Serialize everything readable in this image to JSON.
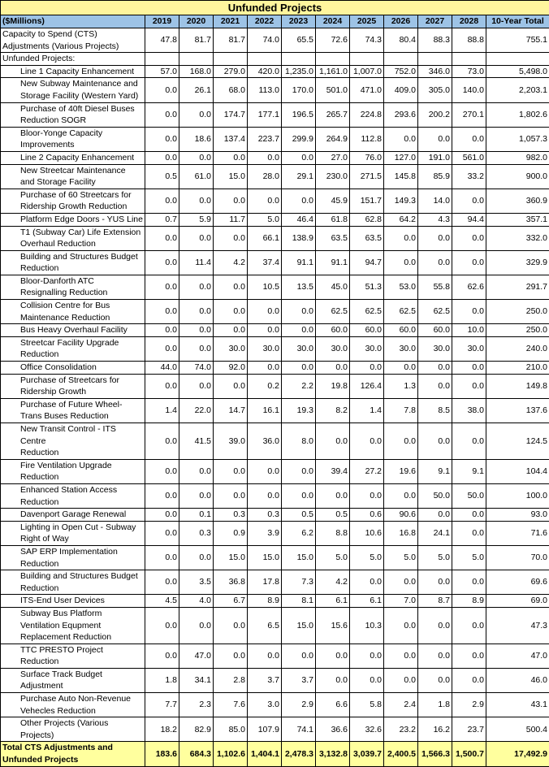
{
  "title": "Unfunded Projects",
  "header": {
    "unit_label": "($Millions)",
    "years": [
      "2019",
      "2020",
      "2021",
      "2022",
      "2023",
      "2024",
      "2025",
      "2026",
      "2027",
      "2028"
    ],
    "total_label": "10-Year Total"
  },
  "colors": {
    "title_bg": "#fff59d",
    "header_bg": "#9dc3e6",
    "total_bg": "#ffff9e"
  },
  "rows": [
    {
      "label": "Capacity to Spend (CTS)\nAdjustments (Various Projects)",
      "indent": false,
      "values": [
        "47.8",
        "81.7",
        "81.7",
        "74.0",
        "65.5",
        "72.6",
        "74.3",
        "80.4",
        "88.3",
        "88.8"
      ],
      "total": "755.1"
    },
    {
      "label": "Unfunded Projects:",
      "indent": false,
      "values": [
        "",
        "",
        "",
        "",
        "",
        "",
        "",
        "",
        "",
        ""
      ],
      "total": ""
    },
    {
      "label": "Line 1 Capacity Enhancement",
      "indent": true,
      "values": [
        "57.0",
        "168.0",
        "279.0",
        "420.0",
        "1,235.0",
        "1,161.0",
        "1,007.0",
        "752.0",
        "346.0",
        "73.0"
      ],
      "total": "5,498.0"
    },
    {
      "label": "New Subway Maintenance and\nStorage Facility (Western Yard)",
      "indent": true,
      "values": [
        "0.0",
        "26.1",
        "68.0",
        "113.0",
        "170.0",
        "501.0",
        "471.0",
        "409.0",
        "305.0",
        "140.0"
      ],
      "total": "2,203.1"
    },
    {
      "label": "Purchase of 40ft Diesel Buses\nReduction SOGR",
      "indent": true,
      "values": [
        "0.0",
        "0.0",
        "174.7",
        "177.1",
        "196.5",
        "265.7",
        "224.8",
        "293.6",
        "200.2",
        "270.1"
      ],
      "total": "1,802.6"
    },
    {
      "label": "Bloor-Yonge Capacity\nImprovements",
      "indent": true,
      "values": [
        "0.0",
        "18.6",
        "137.4",
        "223.7",
        "299.9",
        "264.9",
        "112.8",
        "0.0",
        "0.0",
        "0.0"
      ],
      "total": "1,057.3"
    },
    {
      "label": "Line 2 Capacity Enhancement",
      "indent": true,
      "values": [
        "0.0",
        "0.0",
        "0.0",
        "0.0",
        "0.0",
        "27.0",
        "76.0",
        "127.0",
        "191.0",
        "561.0"
      ],
      "total": "982.0"
    },
    {
      "label": "New Streetcar Maintenance\nand Storage Facility",
      "indent": true,
      "values": [
        "0.5",
        "61.0",
        "15.0",
        "28.0",
        "29.1",
        "230.0",
        "271.5",
        "145.8",
        "85.9",
        "33.2"
      ],
      "total": "900.0"
    },
    {
      "label": "Purchase of 60 Streetcars for\nRidership Growth Reduction",
      "indent": true,
      "values": [
        "0.0",
        "0.0",
        "0.0",
        "0.0",
        "0.0",
        "45.9",
        "151.7",
        "149.3",
        "14.0",
        "0.0"
      ],
      "total": "360.9"
    },
    {
      "label": "Platform Edge Doors - YUS Line",
      "indent": true,
      "values": [
        "0.7",
        "5.9",
        "11.7",
        "5.0",
        "46.4",
        "61.8",
        "62.8",
        "64.2",
        "4.3",
        "94.4"
      ],
      "total": "357.1"
    },
    {
      "label": "T1 (Subway Car) Life Extension\nOverhaul Reduction",
      "indent": true,
      "values": [
        "0.0",
        "0.0",
        "0.0",
        "66.1",
        "138.9",
        "63.5",
        "63.5",
        "0.0",
        "0.0",
        "0.0"
      ],
      "total": "332.0"
    },
    {
      "label": "Building and Structures Budget\nReduction",
      "indent": true,
      "values": [
        "0.0",
        "11.4",
        "4.2",
        "37.4",
        "91.1",
        "91.1",
        "94.7",
        "0.0",
        "0.0",
        "0.0"
      ],
      "total": "329.9"
    },
    {
      "label": "Bloor-Danforth ATC\nResignalling Reduction",
      "indent": true,
      "values": [
        "0.0",
        "0.0",
        "0.0",
        "10.5",
        "13.5",
        "45.0",
        "51.3",
        "53.0",
        "55.8",
        "62.6"
      ],
      "total": "291.7"
    },
    {
      "label": "Collision Centre for Bus\nMaintenance Reduction",
      "indent": true,
      "values": [
        "0.0",
        "0.0",
        "0.0",
        "0.0",
        "0.0",
        "62.5",
        "62.5",
        "62.5",
        "62.5",
        "0.0"
      ],
      "total": "250.0"
    },
    {
      "label": "Bus Heavy Overhaul Facility",
      "indent": true,
      "values": [
        "0.0",
        "0.0",
        "0.0",
        "0.0",
        "0.0",
        "60.0",
        "60.0",
        "60.0",
        "60.0",
        "10.0"
      ],
      "total": "250.0"
    },
    {
      "label": "Streetcar Facility Upgrade\nReduction",
      "indent": true,
      "values": [
        "0.0",
        "0.0",
        "30.0",
        "30.0",
        "30.0",
        "30.0",
        "30.0",
        "30.0",
        "30.0",
        "30.0"
      ],
      "total": "240.0"
    },
    {
      "label": "Office Consolidation",
      "indent": true,
      "values": [
        "44.0",
        "74.0",
        "92.0",
        "0.0",
        "0.0",
        "0.0",
        "0.0",
        "0.0",
        "0.0",
        "0.0"
      ],
      "total": "210.0"
    },
    {
      "label": "Purchase of Streetcars for\nRidership Growth",
      "indent": true,
      "values": [
        "0.0",
        "0.0",
        "0.0",
        "0.2",
        "2.2",
        "19.8",
        "126.4",
        "1.3",
        "0.0",
        "0.0"
      ],
      "total": "149.8"
    },
    {
      "label": "Purchase of Future Wheel-\nTrans Buses Reduction",
      "indent": true,
      "values": [
        "1.4",
        "22.0",
        "14.7",
        "16.1",
        "19.3",
        "8.2",
        "1.4",
        "7.8",
        "8.5",
        "38.0"
      ],
      "total": "137.6"
    },
    {
      "label": "New Transit Control - ITS Centre\nReduction",
      "indent": true,
      "values": [
        "0.0",
        "41.5",
        "39.0",
        "36.0",
        "8.0",
        "0.0",
        "0.0",
        "0.0",
        "0.0",
        "0.0"
      ],
      "total": "124.5"
    },
    {
      "label": "Fire Ventilation Upgrade\nReduction",
      "indent": true,
      "values": [
        "0.0",
        "0.0",
        "0.0",
        "0.0",
        "0.0",
        "39.4",
        "27.2",
        "19.6",
        "9.1",
        "9.1"
      ],
      "total": "104.4"
    },
    {
      "label": "Enhanced Station Access\nReduction",
      "indent": true,
      "values": [
        "0.0",
        "0.0",
        "0.0",
        "0.0",
        "0.0",
        "0.0",
        "0.0",
        "0.0",
        "50.0",
        "50.0"
      ],
      "total": "100.0"
    },
    {
      "label": "Davenport Garage Renewal",
      "indent": true,
      "values": [
        "0.0",
        "0.1",
        "0.3",
        "0.3",
        "0.5",
        "0.5",
        "0.6",
        "90.6",
        "0.0",
        "0.0"
      ],
      "total": "93.0"
    },
    {
      "label": "Lighting in Open Cut - Subway\nRight of Way",
      "indent": true,
      "values": [
        "0.0",
        "0.3",
        "0.9",
        "3.9",
        "6.2",
        "8.8",
        "10.6",
        "16.8",
        "24.1",
        "0.0"
      ],
      "total": "71.6"
    },
    {
      "label": "SAP ERP Implementation\nReduction",
      "indent": true,
      "values": [
        "0.0",
        "0.0",
        "15.0",
        "15.0",
        "15.0",
        "5.0",
        "5.0",
        "5.0",
        "5.0",
        "5.0"
      ],
      "total": "70.0"
    },
    {
      "label": "Building and Structures Budget\nReduction",
      "indent": true,
      "values": [
        "0.0",
        "3.5",
        "36.8",
        "17.8",
        "7.3",
        "4.2",
        "0.0",
        "0.0",
        "0.0",
        "0.0"
      ],
      "total": "69.6"
    },
    {
      "label": "ITS-End User Devices",
      "indent": true,
      "values": [
        "4.5",
        "4.0",
        "6.7",
        "8.9",
        "8.1",
        "6.1",
        "6.1",
        "7.0",
        "8.7",
        "8.9"
      ],
      "total": "69.0"
    },
    {
      "label": "Subway Bus Platform\nVentilation Equpment\nReplacement Reduction",
      "indent": true,
      "values": [
        "0.0",
        "0.0",
        "0.0",
        "6.5",
        "15.0",
        "15.6",
        "10.3",
        "0.0",
        "0.0",
        "0.0"
      ],
      "total": "47.3"
    },
    {
      "label": "TTC PRESTO Project Reduction",
      "indent": true,
      "values": [
        "0.0",
        "47.0",
        "0.0",
        "0.0",
        "0.0",
        "0.0",
        "0.0",
        "0.0",
        "0.0",
        "0.0"
      ],
      "total": "47.0"
    },
    {
      "label": "Surface Track Budget\nAdjustment",
      "indent": true,
      "values": [
        "1.8",
        "34.1",
        "2.8",
        "3.7",
        "3.7",
        "0.0",
        "0.0",
        "0.0",
        "0.0",
        "0.0"
      ],
      "total": "46.0"
    },
    {
      "label": "Purchase Auto Non-Revenue\nVehecles Reduction",
      "indent": true,
      "values": [
        "7.7",
        "2.3",
        "7.6",
        "3.0",
        "2.9",
        "6.6",
        "5.8",
        "2.4",
        "1.8",
        "2.9"
      ],
      "total": "43.1"
    },
    {
      "label": "Other Projects (Various\nProjects)",
      "indent": true,
      "values": [
        "18.2",
        "82.9",
        "85.0",
        "107.9",
        "74.1",
        "36.6",
        "32.6",
        "23.2",
        "16.2",
        "23.7"
      ],
      "total": "500.4"
    }
  ],
  "total_row": {
    "label": "Total CTS Adjustments and\nUnfunded Projects",
    "values": [
      "183.6",
      "684.3",
      "1,102.6",
      "1,404.1",
      "2,478.3",
      "3,132.8",
      "3,039.7",
      "2,400.5",
      "1,566.3",
      "1,500.7"
    ],
    "total": "17,492.9"
  }
}
